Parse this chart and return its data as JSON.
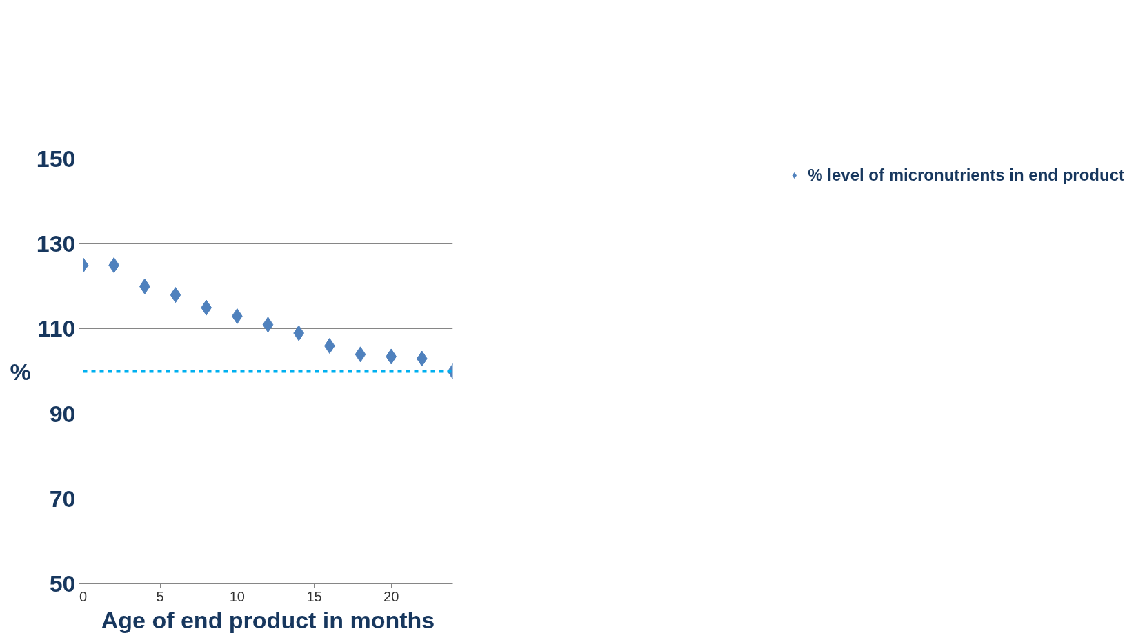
{
  "chart_data": {
    "type": "scatter",
    "xlabel": "Age of end product in months",
    "ylabel": "%",
    "x": [
      0,
      2,
      4,
      6,
      8,
      10,
      12,
      14,
      16,
      18,
      20,
      22,
      24
    ],
    "series": [
      {
        "name": "% level of micronutrients in end product",
        "color": "#4f81bd",
        "values": [
          125,
          125,
          120,
          118,
          115,
          113,
          111,
          109,
          106,
          104,
          103.5,
          103,
          100
        ]
      }
    ],
    "xlim": [
      0,
      24
    ],
    "xticks": [
      0,
      5,
      10,
      15,
      20
    ],
    "ylim": [
      50,
      150
    ],
    "yticks": [
      50,
      70,
      90,
      110,
      130,
      150
    ],
    "ref_lines": [
      {
        "axis": "y",
        "value": 100,
        "color": "#00b0f0",
        "line_style": "dashed"
      }
    ],
    "grid": "y",
    "legend": "right",
    "marker": "diamond"
  }
}
